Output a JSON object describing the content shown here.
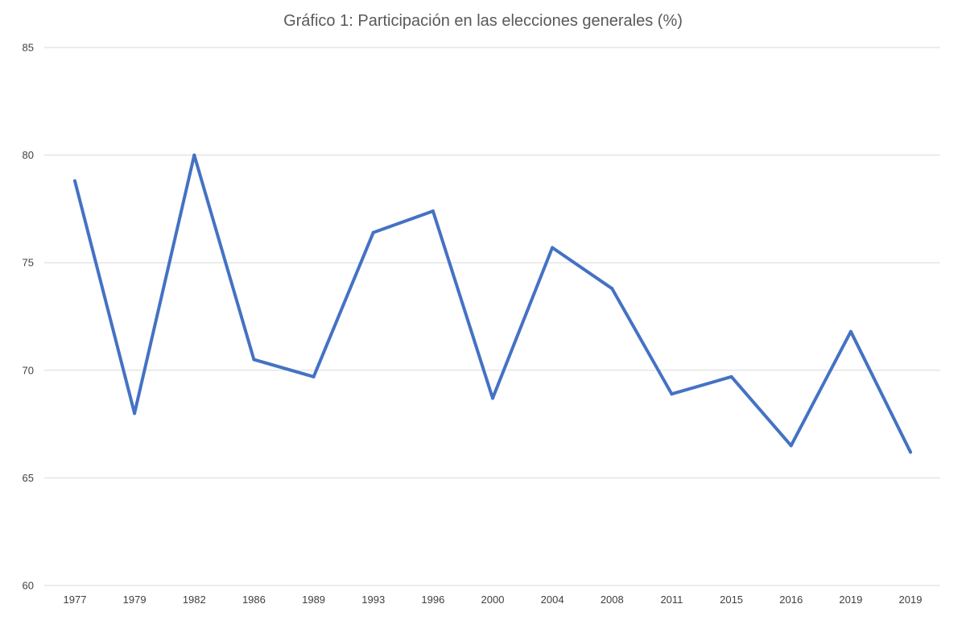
{
  "chart_data": {
    "type": "line",
    "title": "Gráfico 1: Participación en las elecciones generales (%)",
    "xlabel": "",
    "ylabel": "",
    "categories": [
      "1977",
      "1979",
      "1982",
      "1986",
      "1989",
      "1993",
      "1996",
      "2000",
      "2004",
      "2008",
      "2011",
      "2015",
      "2016",
      "2019",
      "2019"
    ],
    "series": [
      {
        "values": [
          78.8,
          68.0,
          80.0,
          70.5,
          69.7,
          76.4,
          77.4,
          68.7,
          75.7,
          73.8,
          68.9,
          69.7,
          66.5,
          71.8,
          66.2
        ],
        "color": "#4472C4"
      }
    ],
    "ylim": [
      60,
      85
    ],
    "yticks": [
      "60",
      "65",
      "70",
      "75",
      "80",
      "85"
    ],
    "grid": true,
    "legend": "none"
  }
}
